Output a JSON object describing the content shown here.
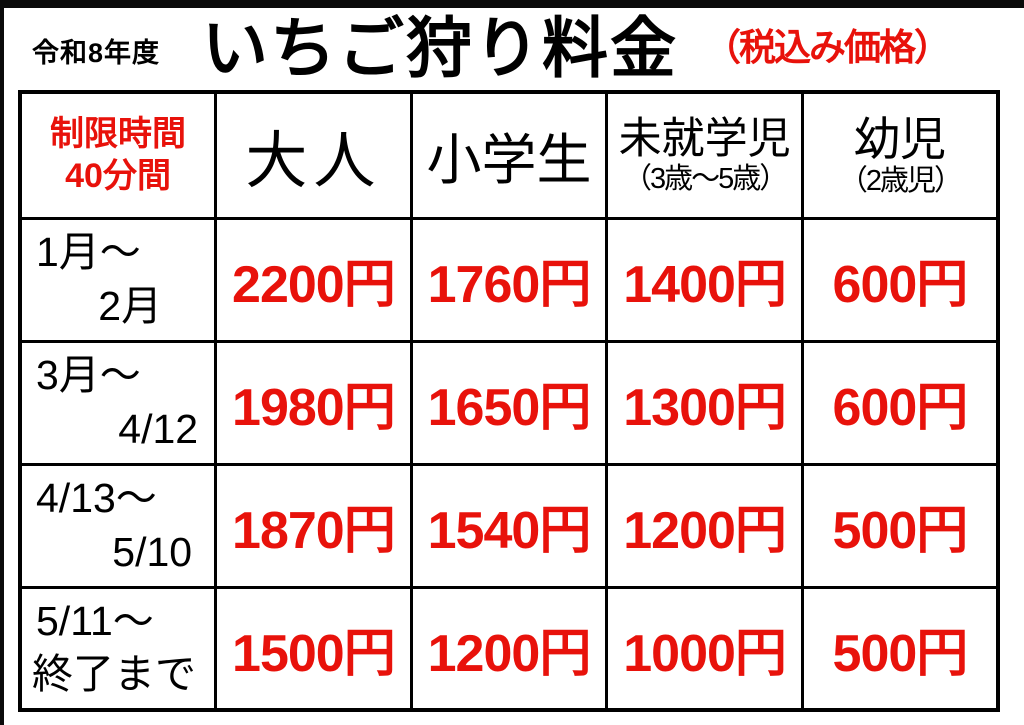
{
  "header": {
    "era": "令和8年度",
    "title": "いちご狩り料金",
    "tax_note": "（税込み価格）"
  },
  "table": {
    "time_limit_line1": "制限時間",
    "time_limit_line2": "40分間",
    "columns": [
      {
        "label": "大人",
        "sub": ""
      },
      {
        "label": "小学生",
        "sub": ""
      },
      {
        "label": "未就学児",
        "sub": "（3歳～5歳）"
      },
      {
        "label": "幼児",
        "sub": "（2歳児）"
      }
    ],
    "rows": [
      {
        "period_line1": "1月～",
        "period_line2": "2月",
        "prices": [
          "2200円",
          "1760円",
          "1400円",
          "600円"
        ]
      },
      {
        "period_line1": "3月～",
        "period_line2": "4/12",
        "prices": [
          "1980円",
          "1650円",
          "1300円",
          "600円"
        ]
      },
      {
        "period_line1": "4/13～",
        "period_line2": "5/10",
        "prices": [
          "1870円",
          "1540円",
          "1200円",
          "500円"
        ]
      },
      {
        "period_line1": "5/11～",
        "period_line2": "終了まで",
        "prices": [
          "1500円",
          "1200円",
          "1000円",
          "500円"
        ]
      }
    ]
  },
  "colors": {
    "accent_red": "#e8120b",
    "border_black": "#000000",
    "background": "#ffffff"
  }
}
